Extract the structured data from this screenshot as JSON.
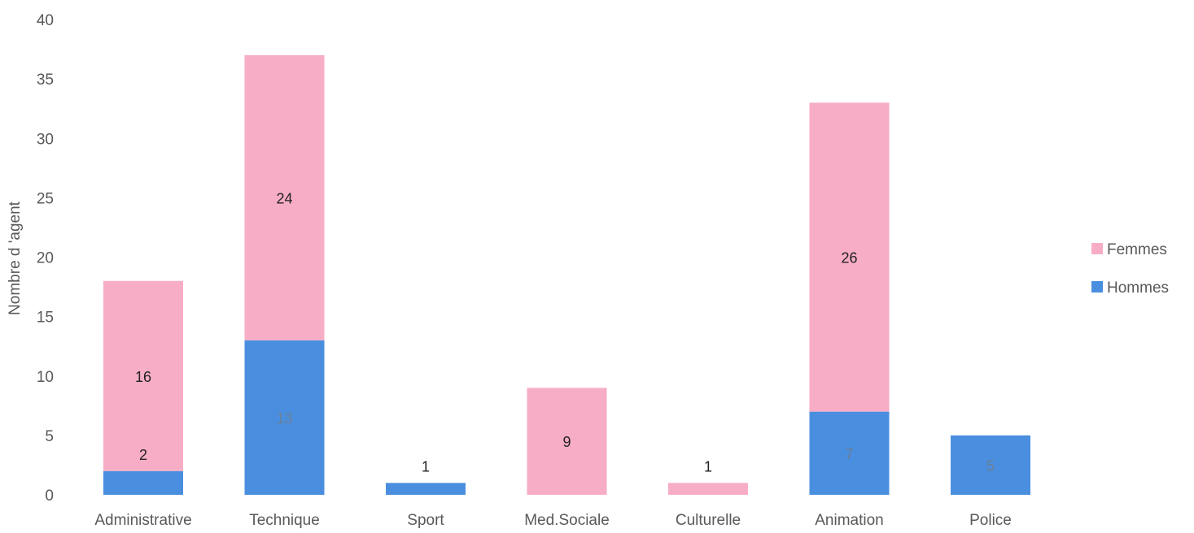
{
  "chart_data": {
    "type": "bar",
    "stacked": true,
    "title": "",
    "xlabel": "",
    "ylabel": "Nombre d 'agent",
    "ylim": [
      0,
      40
    ],
    "yticks": [
      0,
      5,
      10,
      15,
      20,
      25,
      30,
      35,
      40
    ],
    "grid": false,
    "legend_position": "right",
    "categories": [
      "Administrative",
      "Technique",
      "Sport",
      "Med.Sociale",
      "Culturelle",
      "Animation",
      "Police"
    ],
    "series": [
      {
        "name": "Hommes",
        "color": "#4a8fdf",
        "label_color": "#6b7f99",
        "values": [
          2,
          13,
          1,
          0,
          0,
          7,
          5
        ]
      },
      {
        "name": "Femmes",
        "color": "#f8adc6",
        "label_color": "#222222",
        "values": [
          16,
          24,
          0,
          9,
          1,
          26,
          0
        ]
      }
    ],
    "data_labels": {
      "Hommes": [
        "2",
        "13",
        "1",
        "",
        "",
        "7",
        "5"
      ],
      "Femmes": [
        "16",
        "24",
        "",
        "9",
        "1",
        "26",
        ""
      ]
    },
    "legend_order": [
      "Femmes",
      "Hommes"
    ]
  }
}
